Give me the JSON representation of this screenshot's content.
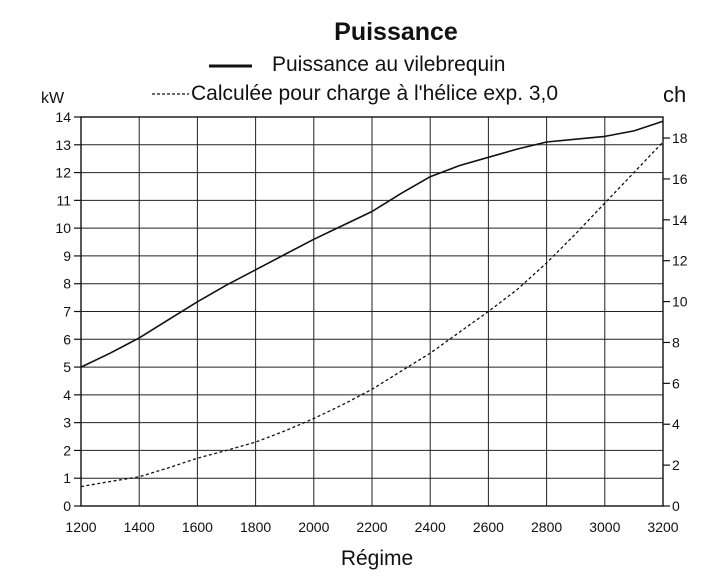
{
  "chart_data": {
    "type": "line",
    "title": "Puissance",
    "xlabel": "Régime",
    "ylabel_left": "kW",
    "ylabel_right": "ch",
    "xlim": [
      1200,
      3200
    ],
    "ylim_left": [
      0,
      14
    ],
    "ylim_right": [
      0,
      19.03
    ],
    "x_ticks": [
      1200,
      1400,
      1600,
      1800,
      2000,
      2200,
      2400,
      2600,
      2800,
      3000,
      3200
    ],
    "y_ticks_left": [
      0,
      1,
      2,
      3,
      4,
      5,
      6,
      7,
      8,
      9,
      10,
      11,
      12,
      13,
      14
    ],
    "y_ticks_right": [
      0,
      2,
      4,
      6,
      8,
      10,
      12,
      14,
      16,
      18
    ],
    "grid": true,
    "legend_position": "top",
    "colors": {
      "line": "#111111",
      "grid": "#222222",
      "background": "#ffffff"
    },
    "series": [
      {
        "name": "Puissance au vilebrequin",
        "style": "solid",
        "x": [
          1200,
          1300,
          1400,
          1500,
          1600,
          1700,
          1800,
          1900,
          2000,
          2100,
          2200,
          2300,
          2400,
          2500,
          2600,
          2700,
          2800,
          2900,
          3000,
          3100,
          3200
        ],
        "y": [
          5.0,
          5.5,
          6.05,
          6.7,
          7.35,
          7.95,
          8.5,
          9.05,
          9.6,
          10.1,
          10.6,
          11.25,
          11.85,
          12.25,
          12.55,
          12.85,
          13.1,
          13.2,
          13.3,
          13.5,
          13.85
        ]
      },
      {
        "name": "Calculée pour charge à l'hélice exp. 3,0",
        "style": "dashed",
        "x": [
          1200,
          1300,
          1400,
          1500,
          1600,
          1700,
          1800,
          1900,
          2000,
          2100,
          2200,
          2300,
          2400,
          2500,
          2600,
          2700,
          2800,
          2900,
          3000,
          3100,
          3200
        ],
        "y": [
          0.7,
          0.88,
          1.05,
          1.37,
          1.72,
          2.0,
          2.3,
          2.7,
          3.15,
          3.65,
          4.2,
          4.85,
          5.5,
          6.25,
          7.0,
          7.8,
          8.75,
          9.8,
          10.9,
          12.0,
          13.1
        ]
      }
    ]
  }
}
